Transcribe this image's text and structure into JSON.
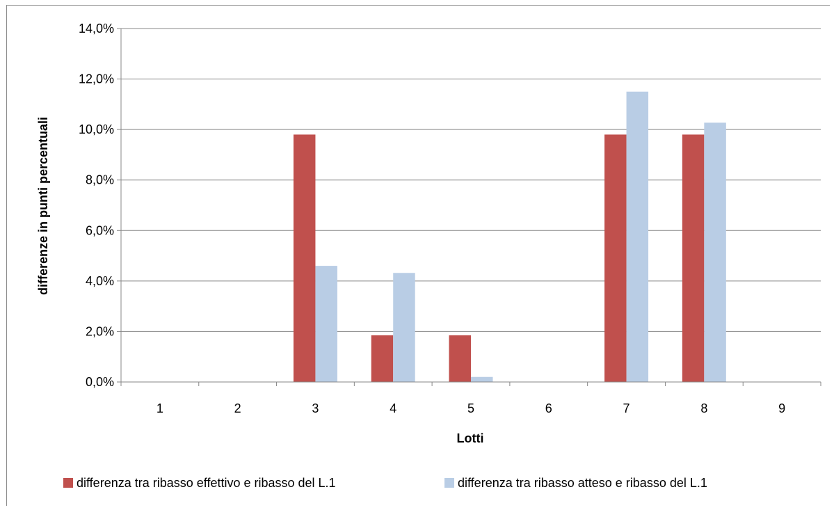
{
  "chart_data": {
    "type": "bar",
    "categories": [
      "1",
      "2",
      "3",
      "4",
      "5",
      "6",
      "7",
      "8",
      "9"
    ],
    "series": [
      {
        "name": "differenza tra ribasso effettivo e ribasso del L.1",
        "color": "#c0504d",
        "values": [
          0,
          0,
          9.8,
          1.85,
          1.85,
          0,
          9.8,
          9.8,
          0
        ]
      },
      {
        "name": "differenza tra ribasso atteso e ribasso del L.1",
        "color": "#b9cde5",
        "values": [
          0,
          0,
          4.6,
          4.32,
          0.2,
          0,
          11.5,
          10.27,
          0
        ]
      }
    ],
    "xlabel": "Lotti",
    "ylabel": "differenze in punti percentuali",
    "ylim": [
      0,
      14
    ],
    "yticks": [
      0,
      2,
      4,
      6,
      8,
      10,
      12,
      14
    ],
    "ytick_labels": [
      "0,0%",
      "2,0%",
      "4,0%",
      "6,0%",
      "8,0%",
      "10,0%",
      "12,0%",
      "14,0%"
    ],
    "grid": true,
    "legend": "bottom",
    "gridline_color": "#878787"
  }
}
